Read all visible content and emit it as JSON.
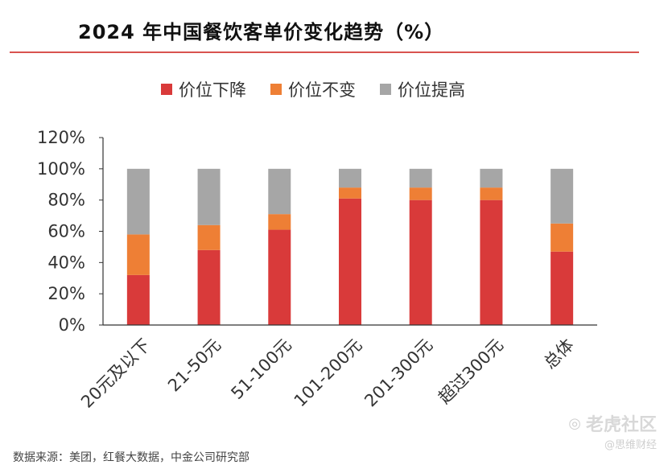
{
  "chart_data": {
    "type": "bar",
    "stacked": true,
    "title": "2024 年中国餐饮客单价变化趋势（%）",
    "categories": [
      "20元及以下",
      "21-50元",
      "51-100元",
      "101-200元",
      "201-300元",
      "超过300元",
      "总体"
    ],
    "series": [
      {
        "name": "价位下降",
        "color": "#d93a3a",
        "values": [
          32,
          48,
          61,
          81,
          80,
          80,
          47
        ]
      },
      {
        "name": "价位不变",
        "color": "#ee7f35",
        "values": [
          26,
          16,
          10,
          7,
          8,
          8,
          18
        ]
      },
      {
        "name": "价位提高",
        "color": "#a6a6a6",
        "values": [
          42,
          36,
          29,
          12,
          12,
          12,
          35
        ]
      }
    ],
    "ylim": [
      0,
      120
    ],
    "yticks": [
      "0%",
      "20%",
      "40%",
      "60%",
      "80%",
      "100%",
      "120%"
    ],
    "xlabel": "",
    "ylabel": "",
    "grid": false,
    "legend": "top"
  },
  "watermark": {
    "text": "老虎社区",
    "sub": "@思维财经"
  },
  "footer": {
    "text": "数据来源：美团，红餐大数据，中金公司研究部"
  }
}
